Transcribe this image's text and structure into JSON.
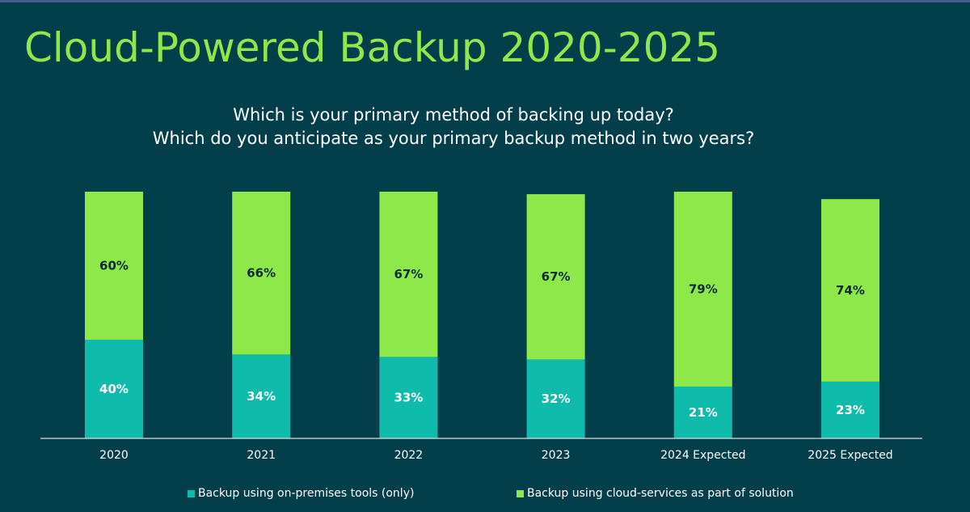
{
  "title": "Cloud-Powered Backup 2020-2025",
  "subtitle_lines": [
    "Which is your primary method of backing up today?",
    "Which do you anticipate as your primary backup method in two years?"
  ],
  "colors": {
    "background": "#023f4a",
    "title": "#8ee84a",
    "on_premises": "#0fbcab",
    "cloud": "#8ee84a"
  },
  "chart_data": {
    "type": "bar",
    "stacked": true,
    "categories": [
      "2020",
      "2021",
      "2022",
      "2023",
      "2024 Expected",
      "2025 Expected"
    ],
    "series": [
      {
        "name": "Backup using on-premises tools (only)",
        "values": [
          40,
          34,
          33,
          32,
          21,
          23
        ],
        "labels": [
          "40%",
          "34%",
          "33%",
          "32%",
          "21%",
          "23%"
        ]
      },
      {
        "name": "Backup using cloud-services as part of solution",
        "values": [
          60,
          66,
          67,
          67,
          79,
          74
        ],
        "labels": [
          "60%",
          "66%",
          "67%",
          "67%",
          "79%",
          "74%"
        ]
      }
    ],
    "ylim": [
      0,
      100
    ],
    "grid": false,
    "legend_position": "bottom"
  }
}
